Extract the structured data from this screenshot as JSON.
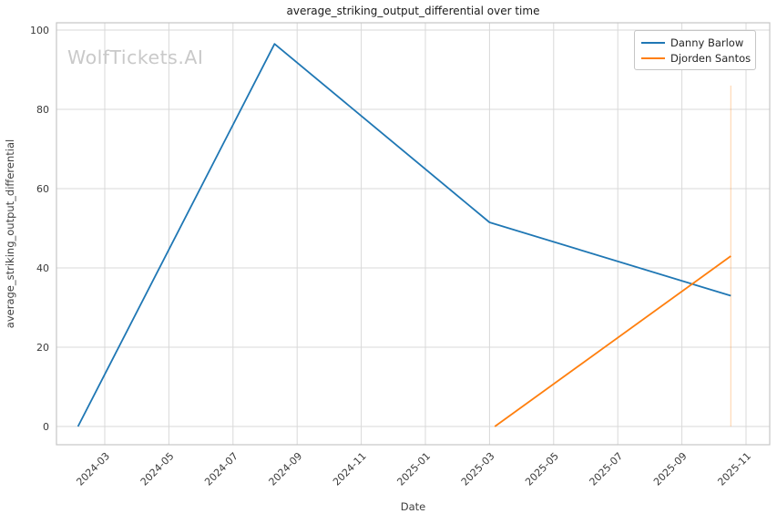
{
  "watermark": "WolfTickets.AI",
  "colors": {
    "grid": "#d9d9d9",
    "spine": "#c6c6c6",
    "tick": "#3a3a3a",
    "title": "#1a1a1a",
    "label": "#404040",
    "legend_text": "#262626",
    "watermark": "#c9c9c9",
    "series_blue": "#1f77b4",
    "series_orange": "#ff7f0e"
  },
  "chart_data": {
    "type": "line",
    "title": "average_striking_output_differential over time",
    "xlabel": "Date",
    "ylabel": "average_striking_output_differential",
    "ylim": [
      0,
      100
    ],
    "yticks": [
      0,
      20,
      40,
      60,
      80,
      100
    ],
    "xticks": [
      "2024-03",
      "2024-05",
      "2024-07",
      "2024-09",
      "2024-11",
      "2025-01",
      "2025-03",
      "2025-05",
      "2025-07",
      "2025-09",
      "2025-11"
    ],
    "xtick_rotation": 45,
    "grid": true,
    "legend_position": "top-right",
    "series": [
      {
        "name": "Danny Barlow",
        "color": "#1f77b4",
        "points": [
          [
            "2024-02-06",
            0
          ],
          [
            "2024-08-10",
            96.5
          ],
          [
            "2025-03-01",
            51.5
          ],
          [
            "2025-10-17",
            33
          ]
        ]
      },
      {
        "name": "Djorden Santos",
        "color": "#ff7f0e",
        "points": [
          [
            "2025-03-06",
            0
          ],
          [
            "2025-10-17",
            43
          ]
        ]
      }
    ],
    "vline": {
      "x": "2025-10-17",
      "y0": 0,
      "y1": 86,
      "color": "#ff7f0e",
      "opacity": 0.3
    }
  }
}
